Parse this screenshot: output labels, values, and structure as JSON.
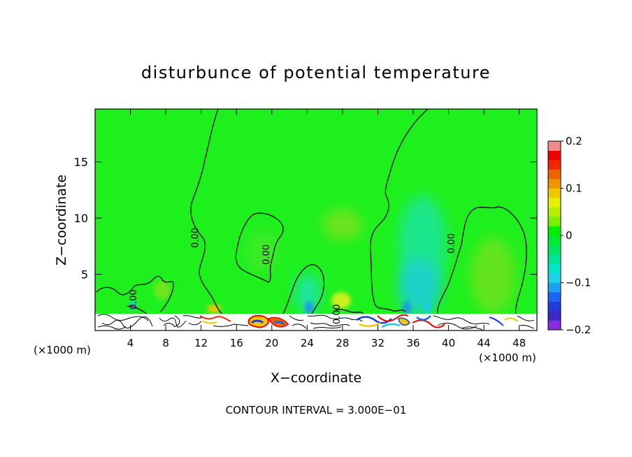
{
  "chart_data": {
    "type": "heatmap",
    "title": "disturbunce of potential temperature",
    "xlabel": "X−coordinate",
    "ylabel": "Z−coordinate",
    "x_unit_label_left": "(×1000 m)",
    "x_unit_label_right": "(×1000 m)",
    "footer": "CONTOUR INTERVAL = 3.000E−01",
    "xlim": [
      0,
      50
    ],
    "ylim": [
      0,
      19.7
    ],
    "x_ticks": [
      4,
      8,
      12,
      16,
      20,
      24,
      28,
      32,
      36,
      40,
      44,
      48
    ],
    "x_tick_labels": [
      "4",
      "8",
      "12",
      "16",
      "20",
      "24",
      "28",
      "32",
      "36",
      "40",
      "44",
      "48"
    ],
    "y_ticks": [
      5,
      10,
      15
    ],
    "y_tick_labels": [
      "5",
      "10",
      "15"
    ],
    "grid": false,
    "contour_labels": [
      {
        "text": "0.00",
        "x": 12.0,
        "y": 8.5
      },
      {
        "text": "0.00",
        "x": 5.0,
        "y": 3.0
      },
      {
        "text": "0.00",
        "x": 20.0,
        "y": 7.0
      },
      {
        "text": "0.00",
        "x": 28.0,
        "y": 1.7
      },
      {
        "text": "0.00",
        "x": 41.0,
        "y": 8.0
      }
    ],
    "colorbar": {
      "range": [
        -0.2,
        0.2
      ],
      "ticks": [
        0.2,
        0.1,
        0,
        -0.1,
        -0.2
      ],
      "tick_labels": [
        "0.2",
        "0.1",
        "0",
        "−0.1",
        "−0.2"
      ],
      "colors": [
        "#8a2be2",
        "#3c28c8",
        "#1e3cdc",
        "#1e64f0",
        "#1ea0f0",
        "#1ed2e6",
        "#00e6c8",
        "#00e696",
        "#00e664",
        "#00ea32",
        "#00f000",
        "#78f000",
        "#b4f000",
        "#e6f000",
        "#f0c800",
        "#f09600",
        "#f06400",
        "#f02800",
        "#f00000",
        "#f08c8c"
      ]
    }
  }
}
